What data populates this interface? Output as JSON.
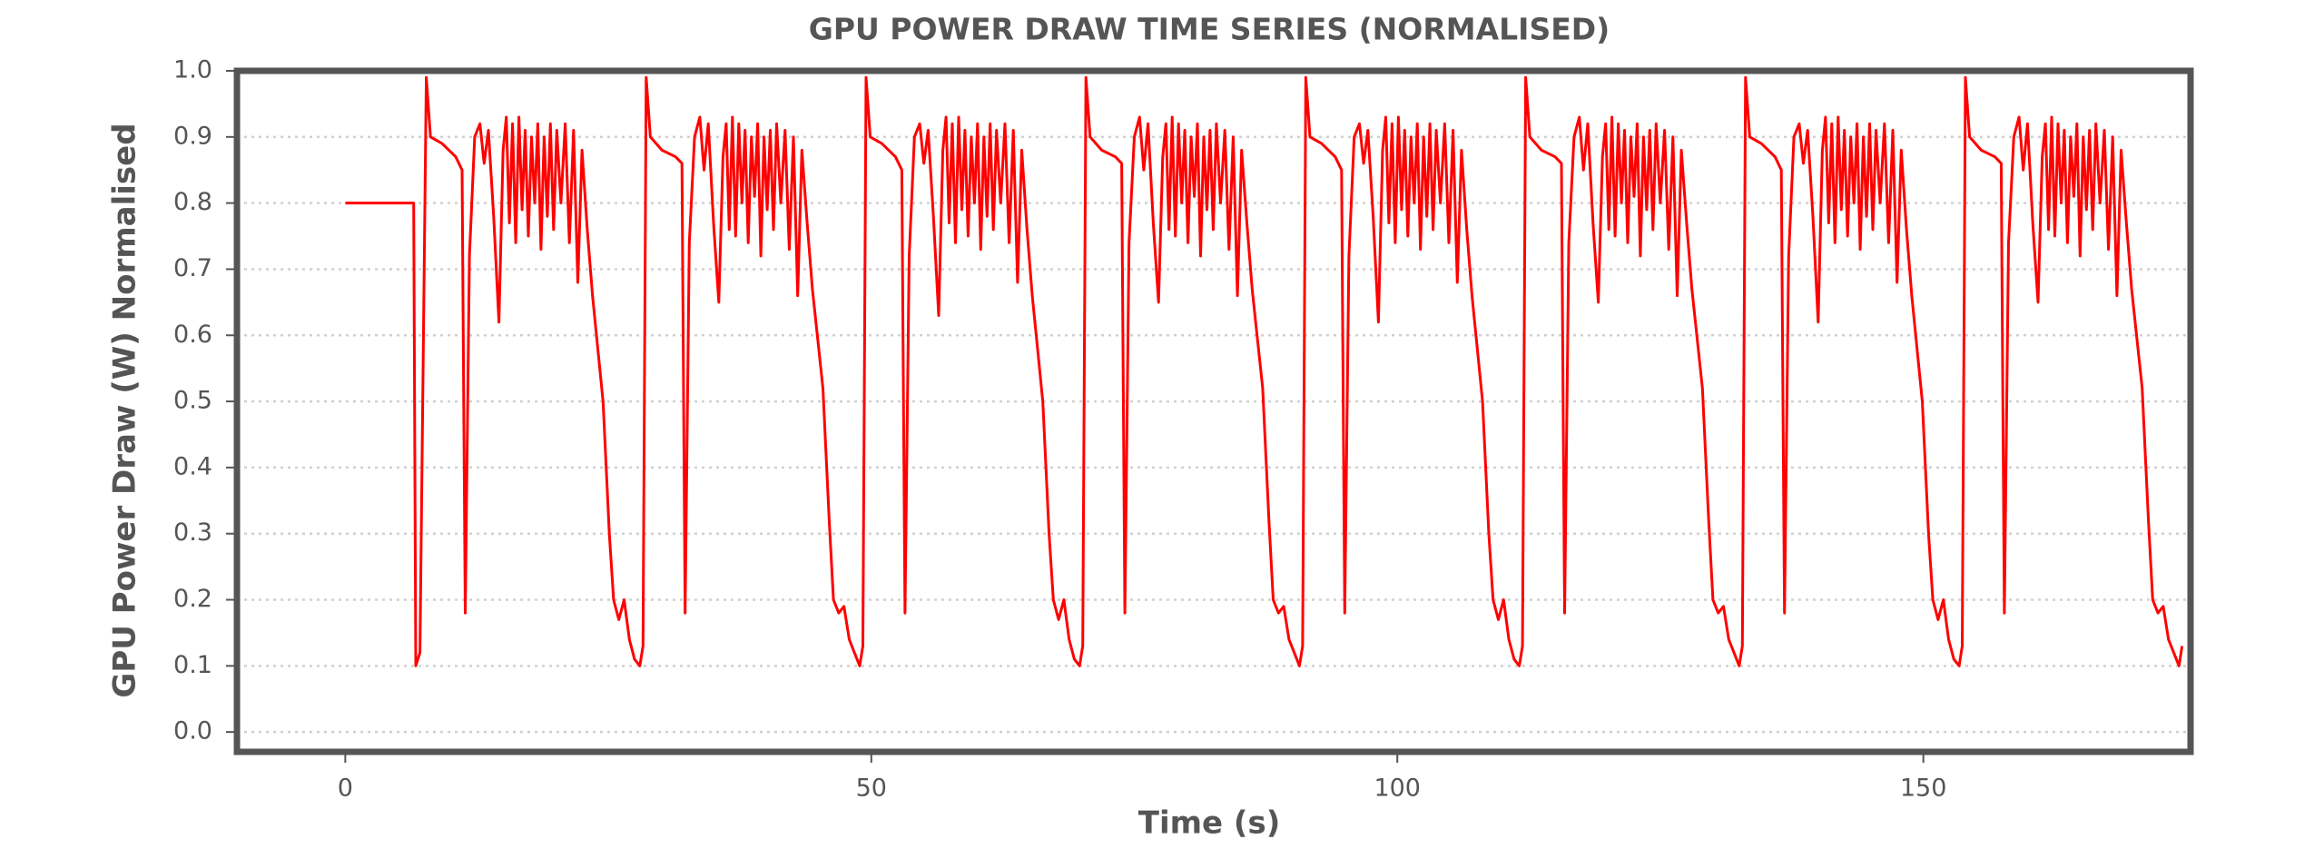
{
  "chart_data": {
    "type": "line",
    "title": "GPU POWER DRAW TIME SERIES (NORMALISED)",
    "x_label": "Time (s)",
    "y_label": "GPU Power Draw (W) Normalised",
    "color": "#ff0000",
    "grid": true,
    "xlim": [
      -10.3,
      175.4
    ],
    "ylim": [
      -0.03,
      1.0
    ],
    "xticks": [
      0,
      50,
      100,
      150
    ],
    "yticks": [
      {
        "value": 0,
        "label": "0.0"
      },
      0.1,
      0.2,
      0.3,
      0.4,
      0.5,
      0.6,
      0.7,
      0.8,
      0.9,
      {
        "value": 1,
        "label": "1.0"
      }
    ],
    "x": [
      0,
      6.5,
      6.7,
      7.1,
      7.7,
      8.1,
      9.2,
      10.5,
      11.1,
      11.4,
      11.8,
      12.3,
      12.8,
      13.2,
      13.6,
      14.1,
      14.6,
      15,
      15.3,
      15.6,
      15.9,
      16.2,
      16.5,
      16.8,
      17.1,
      17.4,
      17.7,
      18,
      18.3,
      18.6,
      18.9,
      19.2,
      19.5,
      19.8,
      20.1,
      20.5,
      20.9,
      21.3,
      21.7,
      22.1,
      22.5,
      23,
      23.5,
      24.5,
      25.1,
      25.5,
      26,
      26.5,
      27,
      27.5,
      28,
      28.3,
      28.6,
      29,
      30.1,
      31.4,
      32,
      32.3,
      32.7,
      33.2,
      33.7,
      34.1,
      34.5,
      35,
      35.5,
      35.9,
      36.2,
      36.5,
      36.8,
      37.1,
      37.4,
      37.7,
      38,
      38.3,
      38.6,
      38.9,
      39.2,
      39.5,
      39.8,
      40.1,
      40.4,
      40.7,
      41,
      41.4,
      41.8,
      42.2,
      42.6,
      43,
      43.4,
      43.9,
      44.4,
      45.4,
      46,
      46.4,
      46.9,
      47.4,
      47.9,
      48.4,
      48.9,
      49.2,
      49.5,
      49.9,
      51,
      52.3,
      52.9,
      53.2,
      53.6,
      54.1,
      54.6,
      55,
      55.4,
      55.9,
      56.4,
      56.8,
      57.1,
      57.4,
      57.7,
      58,
      58.3,
      58.6,
      58.9,
      59.2,
      59.5,
      59.8,
      60.1,
      60.4,
      60.7,
      61,
      61.3,
      61.6,
      61.9,
      62.3,
      62.7,
      63.1,
      63.5,
      63.9,
      64.3,
      64.8,
      65.3,
      66.3,
      66.9,
      67.3,
      67.8,
      68.3,
      68.8,
      69.3,
      69.8,
      70.1,
      70.4,
      70.8,
      71.9,
      73.2,
      73.8,
      74.1,
      74.5,
      75,
      75.5,
      75.9,
      76.3,
      76.8,
      77.3,
      77.7,
      78,
      78.3,
      78.6,
      78.9,
      79.2,
      79.5,
      79.8,
      80.1,
      80.4,
      80.7,
      81,
      81.3,
      81.6,
      81.9,
      82.2,
      82.5,
      82.8,
      83.2,
      83.6,
      84,
      84.4,
      84.8,
      85.2,
      85.7,
      86.2,
      87.2,
      87.8,
      88.2,
      88.7,
      89.2,
      89.7,
      90.2,
      90.7,
      91,
      91.3,
      91.7,
      92.8,
      94.1,
      94.7,
      95,
      95.4,
      95.9,
      96.4,
      96.8,
      97.2,
      97.7,
      98.2,
      98.6,
      98.9,
      99.2,
      99.5,
      99.8,
      100.1,
      100.4,
      100.7,
      101,
      101.3,
      101.6,
      101.9,
      102.2,
      102.5,
      102.8,
      103.1,
      103.4,
      103.7,
      104.1,
      104.5,
      104.9,
      105.3,
      105.7,
      106.1,
      106.6,
      107.1,
      108.1,
      108.7,
      109.1,
      109.6,
      110.1,
      110.6,
      111.1,
      111.6,
      111.9,
      112.2,
      112.6,
      113.7,
      115,
      115.6,
      115.9,
      116.3,
      116.8,
      117.3,
      117.7,
      118.1,
      118.6,
      119.1,
      119.5,
      119.8,
      120.1,
      120.4,
      120.7,
      121,
      121.3,
      121.6,
      121.9,
      122.2,
      122.5,
      122.8,
      123.1,
      123.4,
      123.7,
      124,
      124.3,
      124.6,
      125,
      125.4,
      125.8,
      126.2,
      126.6,
      127,
      127.5,
      128,
      129,
      129.6,
      130,
      130.5,
      131,
      131.5,
      132,
      132.5,
      132.8,
      133.1,
      133.5,
      134.6,
      135.9,
      136.5,
      136.8,
      137.2,
      137.7,
      138.2,
      138.6,
      139,
      139.5,
      140,
      140.4,
      140.7,
      141,
      141.3,
      141.6,
      141.9,
      142.2,
      142.5,
      142.8,
      143.1,
      143.4,
      143.7,
      144,
      144.3,
      144.6,
      144.9,
      145.2,
      145.5,
      145.9,
      146.3,
      146.7,
      147.1,
      147.5,
      147.9,
      148.4,
      148.9,
      149.9,
      150.5,
      150.9,
      151.4,
      151.9,
      152.4,
      152.9,
      153.4,
      153.7,
      154,
      154.4,
      155.5,
      156.8,
      157.4,
      157.7,
      158.1,
      158.6,
      159.1,
      159.5,
      159.9,
      160.4,
      160.9,
      161.3,
      161.6,
      161.9,
      162.2,
      162.5,
      162.8,
      163.1,
      163.4,
      163.7,
      164,
      164.3,
      164.6,
      164.9,
      165.2,
      165.5,
      165.8,
      166.1,
      166.4,
      166.8,
      167.2,
      167.6,
      168,
      168.4,
      168.8,
      169.3,
      169.8,
      170.8,
      171.4,
      171.8,
      172.3,
      172.8,
      173.3,
      173.8,
      174.3,
      174.6
    ],
    "values": [
      0.8,
      0.8,
      0.1,
      0.12,
      0.99,
      0.9,
      0.89,
      0.87,
      0.85,
      0.18,
      0.72,
      0.9,
      0.92,
      0.86,
      0.91,
      0.78,
      0.62,
      0.88,
      0.93,
      0.77,
      0.92,
      0.74,
      0.93,
      0.79,
      0.91,
      0.75,
      0.9,
      0.8,
      0.92,
      0.73,
      0.9,
      0.78,
      0.92,
      0.76,
      0.91,
      0.8,
      0.92,
      0.74,
      0.91,
      0.68,
      0.88,
      0.76,
      0.66,
      0.5,
      0.3,
      0.2,
      0.17,
      0.2,
      0.14,
      0.11,
      0.1,
      0.13,
      0.99,
      0.9,
      0.88,
      0.87,
      0.86,
      0.18,
      0.74,
      0.9,
      0.93,
      0.85,
      0.92,
      0.77,
      0.65,
      0.87,
      0.92,
      0.76,
      0.93,
      0.75,
      0.92,
      0.8,
      0.91,
      0.74,
      0.9,
      0.81,
      0.92,
      0.72,
      0.9,
      0.79,
      0.91,
      0.76,
      0.92,
      0.8,
      0.91,
      0.73,
      0.9,
      0.66,
      0.88,
      0.77,
      0.67,
      0.52,
      0.32,
      0.2,
      0.18,
      0.19,
      0.14,
      0.12,
      0.1,
      0.13,
      0.99,
      0.9,
      0.89,
      0.87,
      0.85,
      0.18,
      0.72,
      0.9,
      0.92,
      0.86,
      0.91,
      0.78,
      0.63,
      0.88,
      0.93,
      0.77,
      0.92,
      0.74,
      0.93,
      0.79,
      0.91,
      0.75,
      0.9,
      0.8,
      0.92,
      0.73,
      0.9,
      0.78,
      0.92,
      0.76,
      0.91,
      0.8,
      0.92,
      0.74,
      0.91,
      0.68,
      0.88,
      0.76,
      0.66,
      0.5,
      0.3,
      0.2,
      0.17,
      0.2,
      0.14,
      0.11,
      0.1,
      0.13,
      0.99,
      0.9,
      0.88,
      0.87,
      0.86,
      0.18,
      0.74,
      0.9,
      0.93,
      0.85,
      0.92,
      0.77,
      0.65,
      0.87,
      0.92,
      0.76,
      0.93,
      0.75,
      0.92,
      0.8,
      0.91,
      0.74,
      0.9,
      0.81,
      0.92,
      0.72,
      0.9,
      0.79,
      0.91,
      0.76,
      0.92,
      0.8,
      0.91,
      0.73,
      0.9,
      0.66,
      0.88,
      0.77,
      0.67,
      0.52,
      0.32,
      0.2,
      0.18,
      0.19,
      0.14,
      0.12,
      0.1,
      0.13,
      0.99,
      0.9,
      0.89,
      0.87,
      0.85,
      0.18,
      0.72,
      0.9,
      0.92,
      0.86,
      0.91,
      0.78,
      0.62,
      0.88,
      0.93,
      0.77,
      0.92,
      0.74,
      0.93,
      0.79,
      0.91,
      0.75,
      0.9,
      0.8,
      0.92,
      0.73,
      0.9,
      0.78,
      0.92,
      0.76,
      0.91,
      0.8,
      0.92,
      0.74,
      0.91,
      0.68,
      0.88,
      0.76,
      0.66,
      0.5,
      0.3,
      0.2,
      0.17,
      0.2,
      0.14,
      0.11,
      0.1,
      0.13,
      0.99,
      0.9,
      0.88,
      0.87,
      0.86,
      0.18,
      0.74,
      0.9,
      0.93,
      0.85,
      0.92,
      0.77,
      0.65,
      0.87,
      0.92,
      0.76,
      0.93,
      0.75,
      0.92,
      0.8,
      0.91,
      0.74,
      0.9,
      0.81,
      0.92,
      0.72,
      0.9,
      0.79,
      0.91,
      0.76,
      0.92,
      0.8,
      0.91,
      0.73,
      0.9,
      0.66,
      0.88,
      0.77,
      0.67,
      0.52,
      0.32,
      0.2,
      0.18,
      0.19,
      0.14,
      0.12,
      0.1,
      0.13,
      0.99,
      0.9,
      0.89,
      0.87,
      0.85,
      0.18,
      0.72,
      0.9,
      0.92,
      0.86,
      0.91,
      0.78,
      0.62,
      0.88,
      0.93,
      0.77,
      0.92,
      0.74,
      0.93,
      0.79,
      0.91,
      0.75,
      0.9,
      0.8,
      0.92,
      0.73,
      0.9,
      0.78,
      0.92,
      0.76,
      0.91,
      0.8,
      0.92,
      0.74,
      0.91,
      0.68,
      0.88,
      0.76,
      0.66,
      0.5,
      0.3,
      0.2,
      0.17,
      0.2,
      0.14,
      0.11,
      0.1,
      0.13,
      0.99,
      0.9,
      0.88,
      0.87,
      0.86,
      0.18,
      0.74,
      0.9,
      0.93,
      0.85,
      0.92,
      0.77,
      0.65,
      0.87,
      0.92,
      0.76,
      0.93,
      0.75,
      0.92,
      0.8,
      0.91,
      0.74,
      0.9,
      0.81,
      0.92,
      0.72,
      0.9,
      0.79,
      0.91,
      0.76,
      0.92,
      0.8,
      0.91,
      0.73,
      0.9,
      0.66,
      0.88,
      0.77,
      0.67,
      0.52,
      0.32,
      0.2,
      0.18,
      0.19,
      0.14,
      0.12,
      0.1,
      0.13
    ]
  }
}
